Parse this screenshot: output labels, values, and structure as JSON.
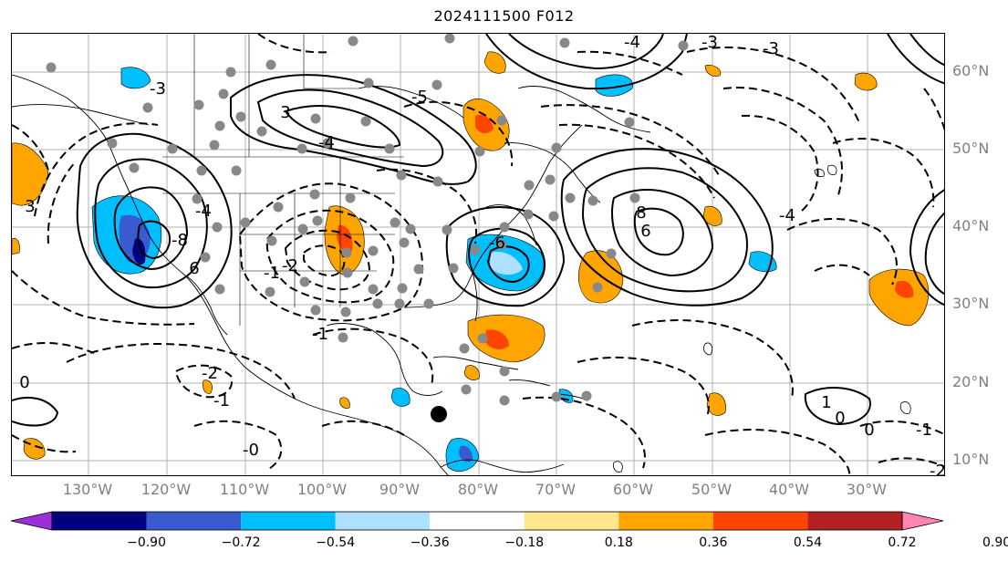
{
  "title": "2024111500 F012",
  "lat_labels": [
    "60°N",
    "50°N",
    "40°N",
    "30°N",
    "20°N",
    "10°N"
  ],
  "lon_labels": [
    "130°W",
    "120°W",
    "110°W",
    "100°W",
    "90°W",
    "80°W",
    "70°W",
    "60°W",
    "50°W",
    "40°W",
    "30°W"
  ],
  "colorbar": {
    "ticks": [
      "−0.90",
      "−0.72",
      "−0.54",
      "−0.36",
      "−0.18",
      "0.18",
      "0.36",
      "0.54",
      "0.72",
      "0.90"
    ],
    "colors": [
      "#9b30d9",
      "#000080",
      "#3a5bd0",
      "#00bfff",
      "#b0e0ff",
      "#ffffff",
      "#ffe68a",
      "#ffa500",
      "#ff4500",
      "#b22222",
      "#ff85b4"
    ]
  },
  "contour_labels": [
    "-3",
    "-4",
    "-5",
    "-4",
    "3",
    "-8",
    "8",
    "-6",
    "6",
    "-4",
    "-2",
    "-1",
    "0",
    "-1",
    "-2",
    "-1",
    "1",
    "0",
    "0",
    "-0",
    "-1",
    "-3",
    "-4",
    "-3",
    "3",
    "6",
    "-2"
  ]
}
